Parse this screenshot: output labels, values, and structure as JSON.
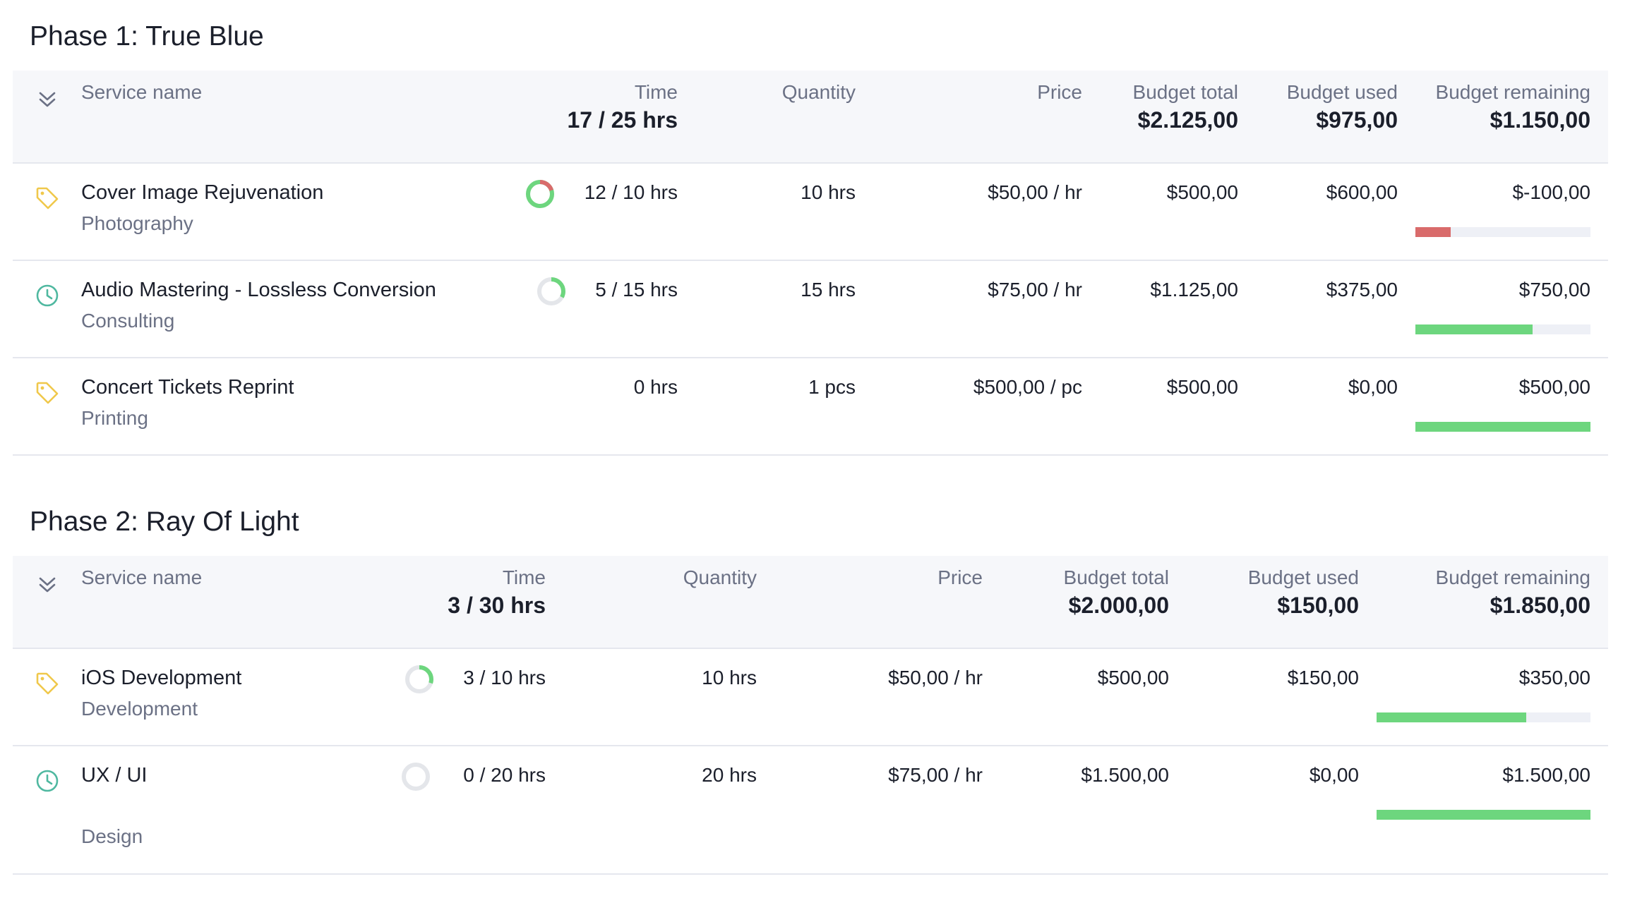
{
  "colors": {
    "green": "#6dd67e",
    "red": "#d96b6b",
    "tag": "#f0c84b",
    "clock": "#4fb8a0",
    "ring_track": "#e4e6ea"
  },
  "phases": [
    {
      "title": "Phase 1: True Blue",
      "header": {
        "collapse_icon": "double-chevron-down-icon",
        "service_name": "Service name",
        "time": "Time",
        "time_total": "17 / 25 hrs",
        "quantity": "Quantity",
        "price": "Price",
        "budget_total": "Budget total",
        "budget_total_value": "$2.125,00",
        "budget_used": "Budget used",
        "budget_used_value": "$975,00",
        "budget_remaining": "Budget remaining",
        "budget_remaining_value": "$1.150,00"
      },
      "rows": [
        {
          "icon": "tag-icon",
          "name": "Cover Image Rejuvenation",
          "category": "Photography",
          "time": "12 / 10 hrs",
          "time_fraction": 1.2,
          "quantity": "10 hrs",
          "price": "$50,00 / hr",
          "budget_total": "$500,00",
          "budget_used": "$600,00",
          "budget_remaining": "$-100,00",
          "remaining_fraction": 0.2,
          "remaining_state": "over"
        },
        {
          "icon": "clock-icon",
          "name": "Audio Mastering - Lossless Conversion",
          "category": "Consulting",
          "time": "5 / 15 hrs",
          "time_fraction": 0.33,
          "quantity": "15 hrs",
          "price": "$75,00 / hr",
          "budget_total": "$1.125,00",
          "budget_used": "$375,00",
          "budget_remaining": "$750,00",
          "remaining_fraction": 0.67,
          "remaining_state": "ok"
        },
        {
          "icon": "tag-icon",
          "name": "Concert Tickets Reprint",
          "category": "Printing",
          "time": "0 hrs",
          "time_fraction": null,
          "quantity": "1 pcs",
          "price": "$500,00 / pc",
          "budget_total": "$500,00",
          "budget_used": "$0,00",
          "budget_remaining": "$500,00",
          "remaining_fraction": 1.0,
          "remaining_state": "ok"
        }
      ]
    },
    {
      "title": "Phase 2: Ray Of Light",
      "header": {
        "collapse_icon": "double-chevron-down-icon",
        "service_name": "Service name",
        "time": "Time",
        "time_total": "3 / 30 hrs",
        "quantity": "Quantity",
        "price": "Price",
        "budget_total": "Budget total",
        "budget_total_value": "$2.000,00",
        "budget_used": "Budget used",
        "budget_used_value": "$150,00",
        "budget_remaining": "Budget remaining",
        "budget_remaining_value": "$1.850,00"
      },
      "rows": [
        {
          "icon": "tag-icon",
          "name": "iOS Development",
          "category": "Development",
          "time": "3 / 10 hrs",
          "time_fraction": 0.3,
          "quantity": "10 hrs",
          "price": "$50,00 / hr",
          "budget_total": "$500,00",
          "budget_used": "$150,00",
          "budget_remaining": "$350,00",
          "remaining_fraction": 0.7,
          "remaining_state": "ok"
        },
        {
          "icon": "clock-icon",
          "name": "UX / UI",
          "category": "Design",
          "time": "0 / 20 hrs",
          "time_fraction": 0.0,
          "quantity": "20 hrs",
          "price": "$75,00 / hr",
          "budget_total": "$1.500,00",
          "budget_used": "$0,00",
          "budget_remaining": "$1.500,00",
          "remaining_fraction": 1.0,
          "remaining_state": "ok"
        }
      ]
    }
  ]
}
